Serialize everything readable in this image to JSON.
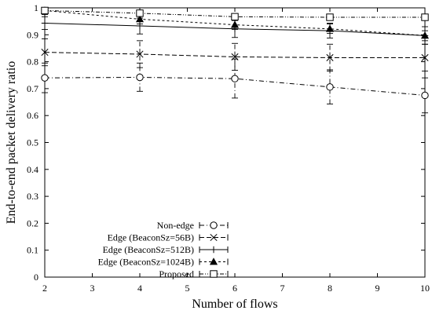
{
  "chart_data": {
    "type": "line",
    "title": "",
    "xlabel": "Number of flows",
    "ylabel": "End-to-end packet delivery ratio",
    "xlim": [
      2,
      10
    ],
    "ylim": [
      0,
      1
    ],
    "xticks": [
      2,
      3,
      4,
      5,
      6,
      7,
      8,
      9,
      10
    ],
    "yticks": [
      0,
      0.1,
      0.2,
      0.3,
      0.4,
      0.5,
      0.6,
      0.7,
      0.8,
      0.9,
      1
    ],
    "grid": false,
    "legend_position": "bottom-left",
    "series": [
      {
        "name": "Non-edge",
        "marker": "circle",
        "line_style": "dash-dot",
        "x": [
          2,
          4,
          6,
          8,
          10
        ],
        "y": [
          0.74,
          0.742,
          0.737,
          0.706,
          0.675
        ],
        "err_low": [
          0.685,
          0.69,
          0.665,
          0.643,
          0.61
        ],
        "err_high": [
          0.795,
          0.795,
          0.81,
          0.77,
          0.74
        ]
      },
      {
        "name": "Edge (BeaconSz=56B)",
        "marker": "x",
        "line_style": "dashed",
        "x": [
          2,
          4,
          6,
          8,
          10
        ],
        "y": [
          0.835,
          0.828,
          0.818,
          0.815,
          0.815
        ],
        "err_low": [
          0.785,
          0.778,
          0.768,
          0.765,
          0.765
        ],
        "err_high": [
          0.885,
          0.878,
          0.868,
          0.865,
          0.865
        ]
      },
      {
        "name": "Edge (BeaconSz=512B)",
        "marker": "plus",
        "line_style": "solid",
        "x": [
          2,
          4,
          6,
          8,
          10
        ],
        "y": [
          0.943,
          0.933,
          0.922,
          0.915,
          0.897
        ],
        "err_low": [
          0.92,
          0.903,
          0.89,
          0.888,
          0.865
        ],
        "err_high": [
          0.967,
          0.962,
          0.953,
          0.943,
          0.93
        ]
      },
      {
        "name": "Edge (BeaconSz=1024B)",
        "marker": "triangle",
        "line_style": "short-dash",
        "x": [
          2,
          4,
          6,
          8,
          10
        ],
        "y": [
          0.99,
          0.958,
          0.937,
          0.922,
          0.897
        ],
        "err_low": [
          0.975,
          0.94,
          0.92,
          0.905,
          0.878
        ],
        "err_high": [
          1.0,
          0.975,
          0.955,
          0.94,
          0.915
        ]
      },
      {
        "name": "Proposed",
        "marker": "square",
        "line_style": "dotted-dash",
        "x": [
          2,
          4,
          6,
          8,
          10
        ],
        "y": [
          0.99,
          0.98,
          0.967,
          0.965,
          0.965
        ],
        "err_low": [
          0.985,
          0.972,
          0.96,
          0.958,
          0.958
        ],
        "err_high": [
          0.997,
          0.988,
          0.974,
          0.972,
          0.972
        ]
      }
    ]
  }
}
